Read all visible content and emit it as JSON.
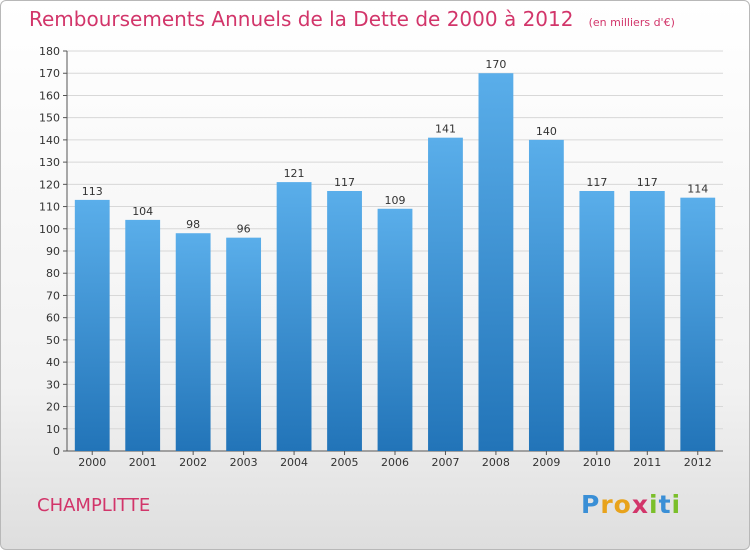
{
  "title": {
    "main": "Remboursements Annuels de la Dette de 2000 à 2012",
    "unit": "(en milliers d'€)"
  },
  "commune": "CHAMPLITTE",
  "logo": {
    "letters": [
      "P",
      "r",
      "o",
      "x",
      "i",
      "t",
      "i"
    ],
    "colors": [
      "#3a8fd6",
      "#e8a31c",
      "#e8a31c",
      "#d2356a",
      "#7bbf2a",
      "#3a8fd6",
      "#7bbf2a"
    ]
  },
  "colors": {
    "bar_top": "#5aaeea",
    "bar_bottom": "#2274b8",
    "accent": "#d2356a",
    "grid": "#d8d8d8"
  },
  "chart_data": {
    "type": "bar",
    "categories": [
      "2000",
      "2001",
      "2002",
      "2003",
      "2004",
      "2005",
      "2006",
      "2007",
      "2008",
      "2009",
      "2010",
      "2011",
      "2012"
    ],
    "values": [
      113,
      104,
      98,
      96,
      121,
      117,
      109,
      141,
      170,
      140,
      117,
      117,
      114
    ],
    "ylim": [
      0,
      180
    ],
    "yticks": [
      0,
      10,
      20,
      30,
      40,
      50,
      60,
      70,
      80,
      90,
      100,
      110,
      120,
      130,
      140,
      150,
      160,
      170,
      180
    ],
    "grid": true,
    "data_labels": true
  }
}
